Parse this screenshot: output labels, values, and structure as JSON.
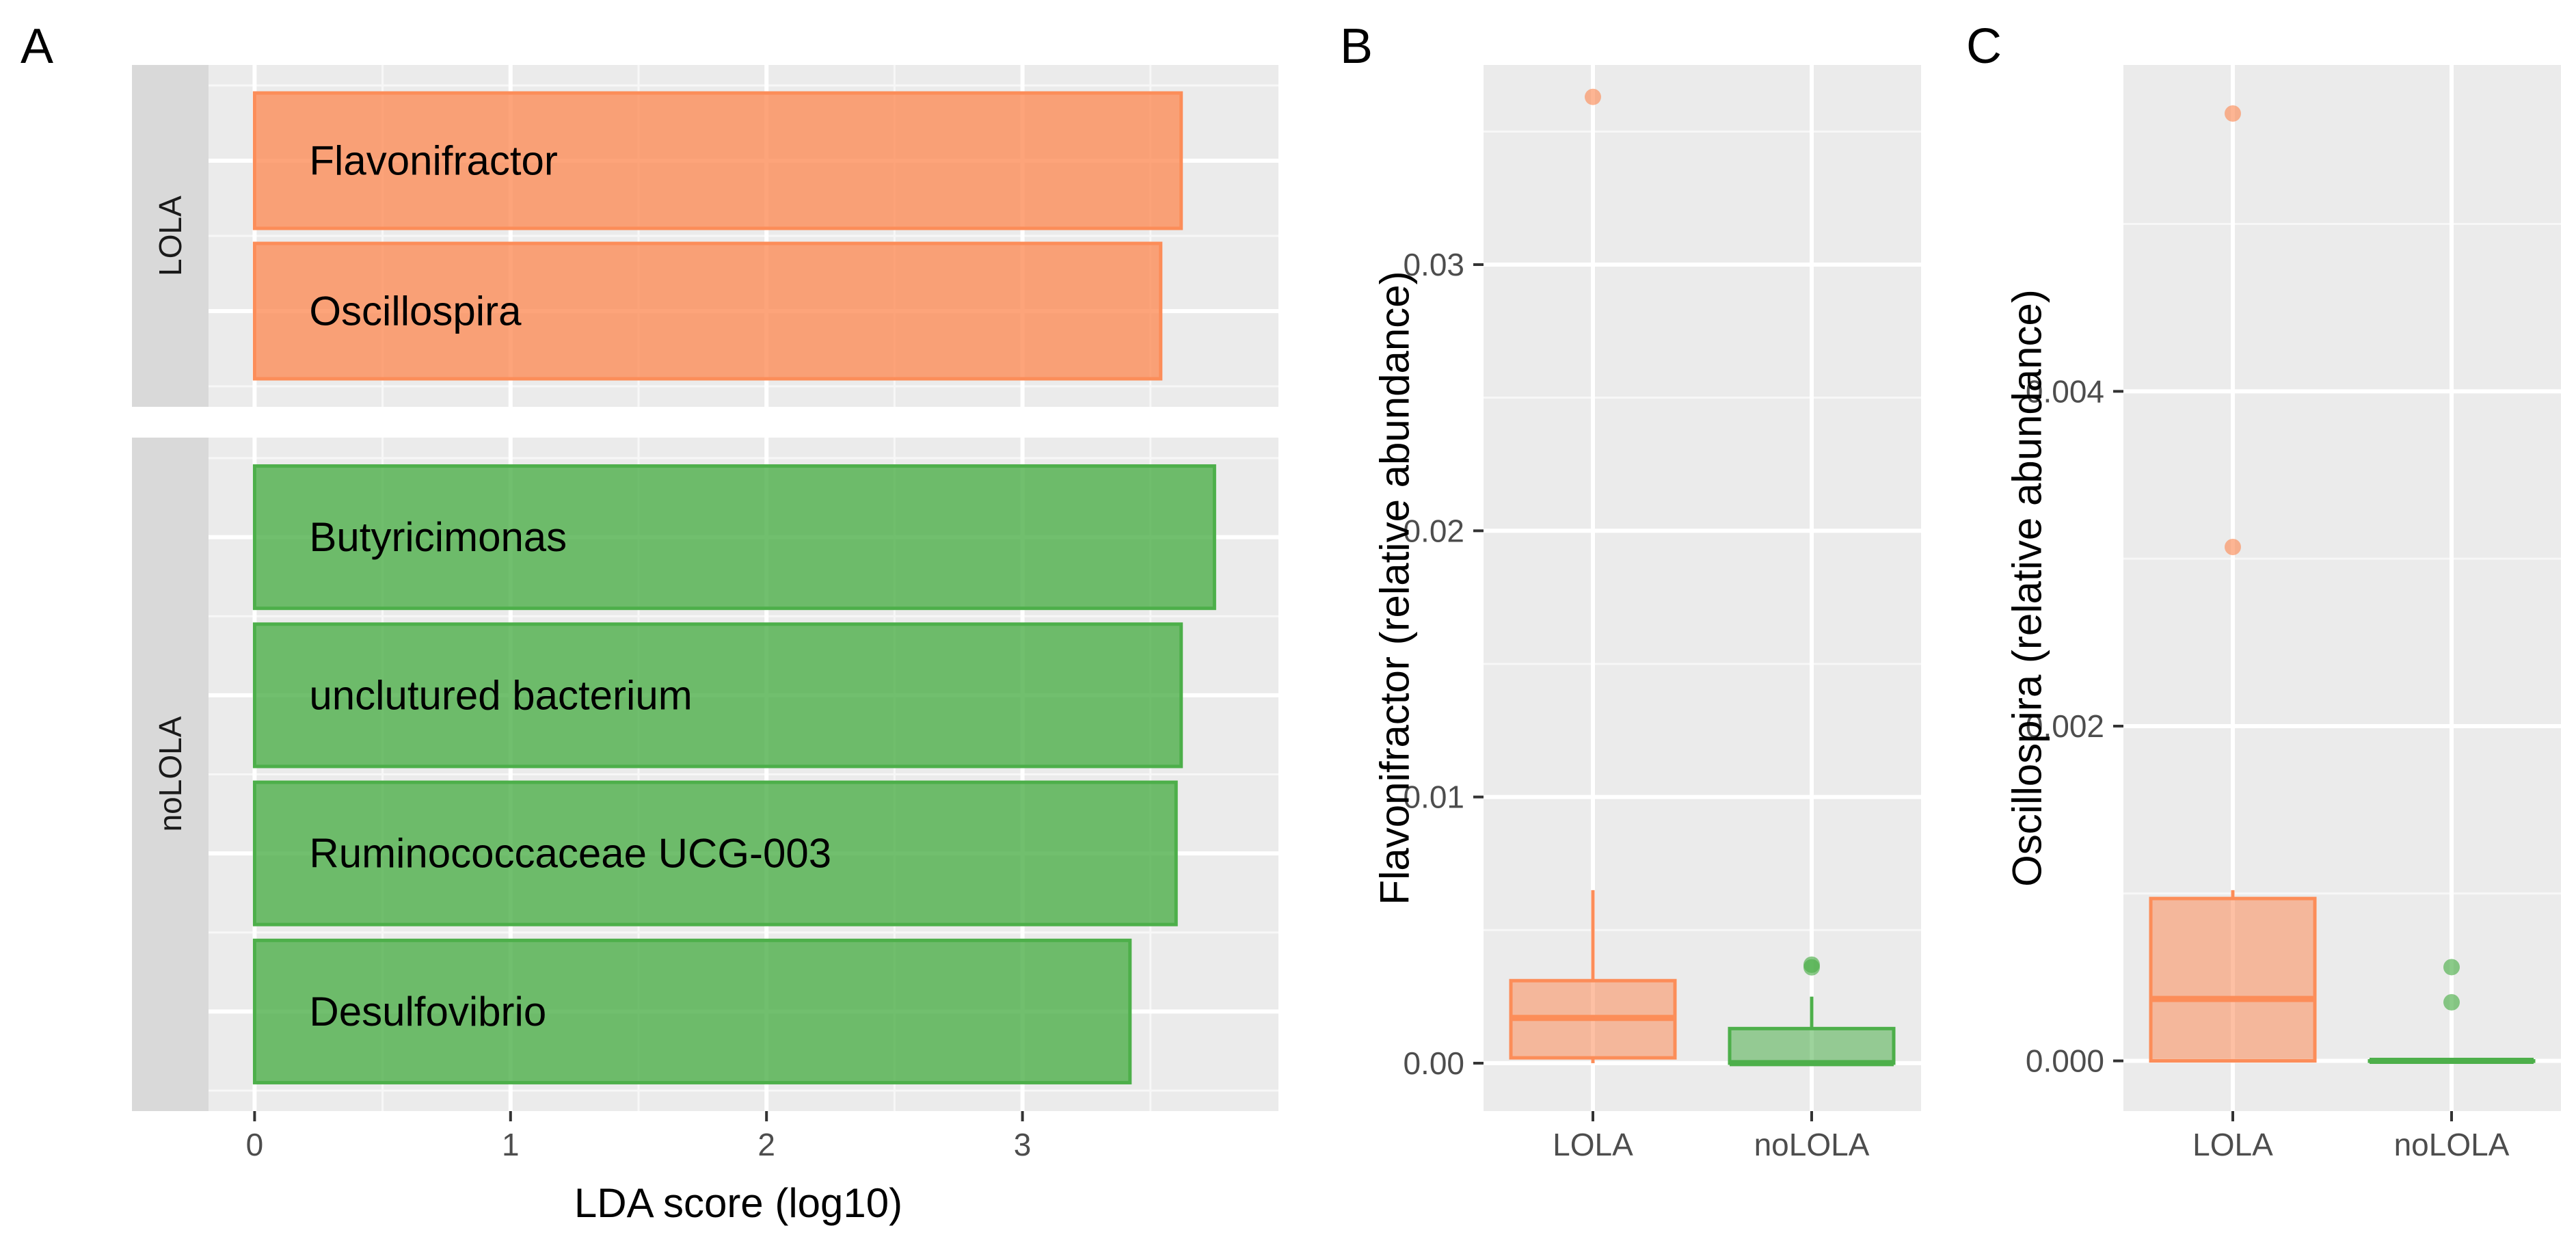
{
  "colors": {
    "LOLA": "#fc8d59",
    "noLOLA": "#4daf4a"
  },
  "chart_data": [
    {
      "panel": "A",
      "type": "bar",
      "orientation": "horizontal",
      "xlabel": "LDA score (log10)",
      "xlim": [
        -0.18,
        4.0
      ],
      "xticks": [
        0,
        1,
        2,
        3
      ],
      "facets": [
        {
          "name": "LOLA",
          "color_key": "LOLA",
          "categories": [
            "Flavonifractor",
            "Oscillospira"
          ],
          "values": [
            3.62,
            3.54
          ]
        },
        {
          "name": "noLOLA",
          "color_key": "noLOLA",
          "categories": [
            "Butyricimonas",
            "unclutured bacterium",
            "Ruminococcaceae UCG-003",
            "Desulfovibrio"
          ],
          "values": [
            3.75,
            3.62,
            3.6,
            3.42
          ]
        }
      ]
    },
    {
      "panel": "B",
      "type": "boxplot",
      "ylabel": "Flavonifractor (relative abundance)",
      "ylim": [
        -0.0018,
        0.0375
      ],
      "yticks": [
        0.0,
        0.01,
        0.02,
        0.03
      ],
      "ytick_labels": [
        "0.00",
        "0.01",
        "0.02",
        "0.03"
      ],
      "categories": [
        "LOLA",
        "noLOLA"
      ],
      "boxes": [
        {
          "name": "LOLA",
          "color_key": "LOLA",
          "q1": 0.0002,
          "median": 0.0017,
          "q3": 0.0031,
          "whisker_low": 0.0,
          "whisker_high": 0.0065,
          "outliers": [
            0.0363
          ]
        },
        {
          "name": "noLOLA",
          "color_key": "noLOLA",
          "q1": 0.0,
          "median": 0.0,
          "q3": 0.0013,
          "whisker_low": 0.0,
          "whisker_high": 0.0025,
          "outliers": [
            0.0036,
            0.0037
          ]
        }
      ]
    },
    {
      "panel": "C",
      "type": "boxplot",
      "ylabel": "Oscillospira (relative abundance)",
      "ylim": [
        -0.0003,
        0.00595
      ],
      "yticks": [
        0.0,
        0.002,
        0.004
      ],
      "ytick_labels": [
        "0.000",
        "0.002",
        "0.004"
      ],
      "categories": [
        "LOLA",
        "noLOLA"
      ],
      "boxes": [
        {
          "name": "LOLA",
          "color_key": "LOLA",
          "q1": 0.0,
          "median": 0.00037,
          "q3": 0.00097,
          "whisker_low": 0.0,
          "whisker_high": 0.00102,
          "outliers": [
            0.00307,
            0.00566
          ]
        },
        {
          "name": "noLOLA",
          "color_key": "noLOLA",
          "q1": 0.0,
          "median": 0.0,
          "q3": 0.0,
          "whisker_low": 0.0,
          "whisker_high": 0.0,
          "outliers": [
            0.00035,
            0.00056
          ]
        }
      ]
    }
  ]
}
